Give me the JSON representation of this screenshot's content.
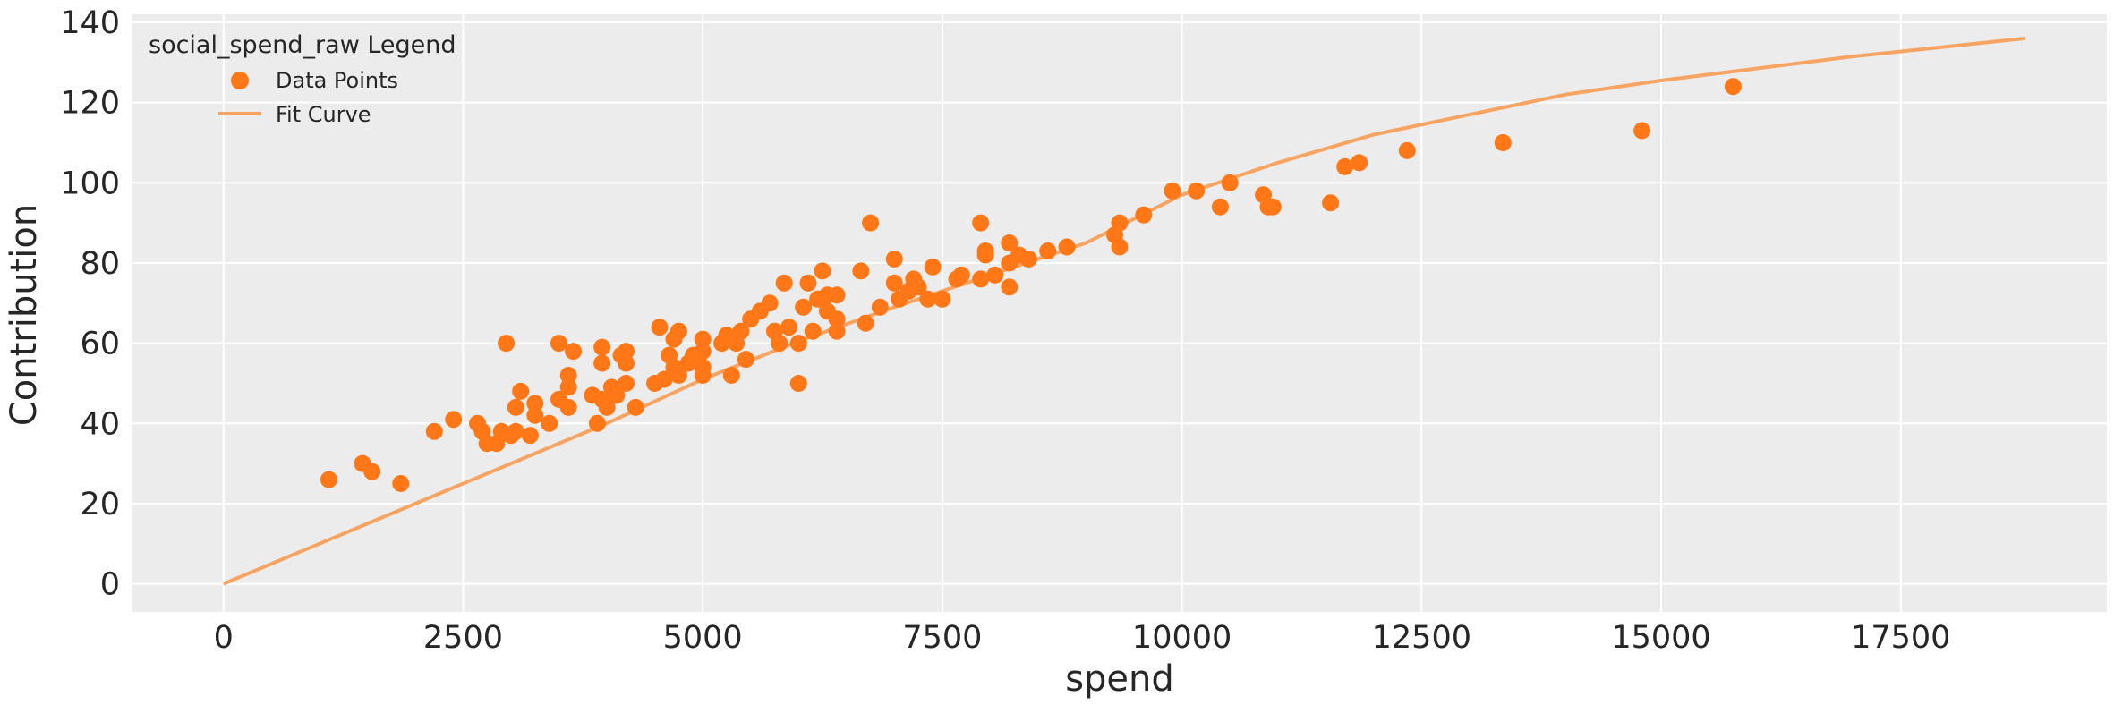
{
  "chart_data": {
    "type": "scatter",
    "xlabel": "spend",
    "ylabel": "Contribution",
    "xlim": [
      -950,
      19650
    ],
    "ylim": [
      -7,
      142
    ],
    "xticks": [
      0,
      2500,
      5000,
      7500,
      10000,
      12500,
      15000,
      17500
    ],
    "yticks": [
      0,
      20,
      40,
      60,
      80,
      100,
      120,
      140
    ],
    "grid": true,
    "legend": {
      "title": "social_spend_raw Legend",
      "placement": "top-left",
      "entries": [
        {
          "label": "Data Points",
          "marker": "circle"
        },
        {
          "label": "Fit Curve",
          "marker": "line"
        }
      ]
    },
    "colors": {
      "points": "#ff7716",
      "curve": "#f7a462",
      "background": "#ececec",
      "grid": "#ffffff"
    },
    "series": [
      {
        "name": "Data Points",
        "kind": "scatter",
        "points": [
          [
            1100,
            26
          ],
          [
            1450,
            30
          ],
          [
            1550,
            28
          ],
          [
            1850,
            25
          ],
          [
            2200,
            38
          ],
          [
            2400,
            41
          ],
          [
            2650,
            40
          ],
          [
            2700,
            38
          ],
          [
            2750,
            35
          ],
          [
            2850,
            35
          ],
          [
            2900,
            38
          ],
          [
            2950,
            60
          ],
          [
            3000,
            37
          ],
          [
            3050,
            44
          ],
          [
            3050,
            38
          ],
          [
            3100,
            48
          ],
          [
            3200,
            37
          ],
          [
            3250,
            42
          ],
          [
            3250,
            45
          ],
          [
            3400,
            40
          ],
          [
            3500,
            46
          ],
          [
            3500,
            60
          ],
          [
            3600,
            44
          ],
          [
            3600,
            52
          ],
          [
            3600,
            49
          ],
          [
            3650,
            58
          ],
          [
            3850,
            47
          ],
          [
            3900,
            40
          ],
          [
            3950,
            46
          ],
          [
            3950,
            59
          ],
          [
            3950,
            55
          ],
          [
            4000,
            44
          ],
          [
            4050,
            49
          ],
          [
            4100,
            47
          ],
          [
            4150,
            57
          ],
          [
            4200,
            55
          ],
          [
            4200,
            58
          ],
          [
            4200,
            50
          ],
          [
            4300,
            44
          ],
          [
            4500,
            50
          ],
          [
            4550,
            64
          ],
          [
            4600,
            51
          ],
          [
            4650,
            57
          ],
          [
            4700,
            54
          ],
          [
            4700,
            61
          ],
          [
            4750,
            52
          ],
          [
            4750,
            63
          ],
          [
            4850,
            55
          ],
          [
            4900,
            57
          ],
          [
            4950,
            56
          ],
          [
            5000,
            54
          ],
          [
            5000,
            52
          ],
          [
            5000,
            58
          ],
          [
            5000,
            61
          ],
          [
            5200,
            60
          ],
          [
            5250,
            62
          ],
          [
            5300,
            52
          ],
          [
            5350,
            60
          ],
          [
            5400,
            63
          ],
          [
            5450,
            56
          ],
          [
            5500,
            66
          ],
          [
            5600,
            68
          ],
          [
            5700,
            70
          ],
          [
            5750,
            63
          ],
          [
            5800,
            60
          ],
          [
            5850,
            75
          ],
          [
            5900,
            64
          ],
          [
            6000,
            60
          ],
          [
            6000,
            50
          ],
          [
            6050,
            69
          ],
          [
            6100,
            75
          ],
          [
            6150,
            63
          ],
          [
            6200,
            71
          ],
          [
            6250,
            78
          ],
          [
            6300,
            68
          ],
          [
            6300,
            72
          ],
          [
            6400,
            72
          ],
          [
            6400,
            63
          ],
          [
            6400,
            66
          ],
          [
            6650,
            78
          ],
          [
            6700,
            65
          ],
          [
            6750,
            90
          ],
          [
            6850,
            69
          ],
          [
            7000,
            81
          ],
          [
            7000,
            75
          ],
          [
            7050,
            71
          ],
          [
            7150,
            73
          ],
          [
            7200,
            76
          ],
          [
            7250,
            74
          ],
          [
            7350,
            71
          ],
          [
            7400,
            79
          ],
          [
            7500,
            71
          ],
          [
            7650,
            76
          ],
          [
            7700,
            77
          ],
          [
            7900,
            76
          ],
          [
            7900,
            90
          ],
          [
            7950,
            83
          ],
          [
            7950,
            82
          ],
          [
            8050,
            77
          ],
          [
            8200,
            74
          ],
          [
            8200,
            80
          ],
          [
            8200,
            85
          ],
          [
            8300,
            82
          ],
          [
            8400,
            81
          ],
          [
            8600,
            83
          ],
          [
            8800,
            84
          ],
          [
            9300,
            87
          ],
          [
            9350,
            90
          ],
          [
            9350,
            84
          ],
          [
            9600,
            92
          ],
          [
            9900,
            98
          ],
          [
            10150,
            98
          ],
          [
            10400,
            94
          ],
          [
            10500,
            100
          ],
          [
            10850,
            97
          ],
          [
            10900,
            94
          ],
          [
            10950,
            94
          ],
          [
            11550,
            95
          ],
          [
            11700,
            104
          ],
          [
            11850,
            105
          ],
          [
            12350,
            108
          ],
          [
            13350,
            110
          ],
          [
            14800,
            113
          ],
          [
            15750,
            124
          ]
        ]
      },
      {
        "name": "Fit Curve",
        "kind": "line",
        "points": [
          [
            0,
            0
          ],
          [
            1000,
            10
          ],
          [
            2000,
            20
          ],
          [
            3000,
            30
          ],
          [
            4000,
            40
          ],
          [
            5000,
            51
          ],
          [
            6000,
            60.5
          ],
          [
            7000,
            69
          ],
          [
            8000,
            77
          ],
          [
            9000,
            85
          ],
          [
            10000,
            97
          ],
          [
            11000,
            105
          ],
          [
            12000,
            112
          ],
          [
            13000,
            117
          ],
          [
            14000,
            122
          ],
          [
            15000,
            125.5
          ],
          [
            16000,
            128.5
          ],
          [
            17000,
            131.5
          ],
          [
            18000,
            134
          ],
          [
            18800,
            136
          ]
        ]
      }
    ]
  }
}
